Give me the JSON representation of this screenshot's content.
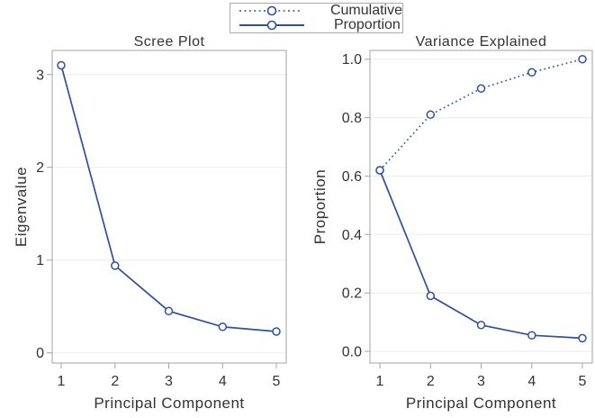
{
  "colors": {
    "accent": "#2d50a0",
    "frame": "#a3a3a3",
    "grid": "#ebebeb",
    "text": "#333333",
    "legend_border": "#ababab",
    "marker_fill": "#ffffff"
  },
  "legend": {
    "items": [
      {
        "label": "Cumulative",
        "line_style": "dotted"
      },
      {
        "label": "Proportion",
        "line_style": "solid"
      }
    ]
  },
  "chart_data": [
    {
      "type": "line",
      "slug": "scree-plot",
      "title": "Scree Plot",
      "xlabel": "Principal Component",
      "ylabel": "Eigenvalue",
      "x": [
        1,
        2,
        3,
        4,
        5
      ],
      "xtick_labels": [
        "1",
        "2",
        "3",
        "4",
        "5"
      ],
      "series": [
        {
          "name": "Eigenvalue",
          "line_style": "solid",
          "values": [
            3.1,
            0.94,
            0.45,
            0.28,
            0.23
          ]
        }
      ],
      "yticks": [
        0,
        1,
        2,
        3
      ],
      "ytick_labels": [
        "0",
        "1",
        "2",
        "3"
      ],
      "ylim": [
        -0.11,
        3.26
      ],
      "grid": "horizontal",
      "legend_position": "top-center-shared"
    },
    {
      "type": "line",
      "slug": "variance-explained",
      "title": "Variance Explained",
      "xlabel": "Principal Component",
      "ylabel": "Proportion",
      "x": [
        1,
        2,
        3,
        4,
        5
      ],
      "xtick_labels": [
        "1",
        "2",
        "3",
        "4",
        "5"
      ],
      "series": [
        {
          "name": "Cumulative",
          "line_style": "dotted",
          "values": [
            0.62,
            0.81,
            0.9,
            0.955,
            1.0
          ]
        },
        {
          "name": "Proportion",
          "line_style": "solid",
          "values": [
            0.62,
            0.19,
            0.09,
            0.055,
            0.045
          ]
        }
      ],
      "yticks": [
        0,
        0.2,
        0.4,
        0.6,
        0.8,
        1.0
      ],
      "ytick_labels": [
        "0.0",
        "0.2",
        "0.4",
        "0.6",
        "0.8",
        "1.0"
      ],
      "ylim": [
        -0.04,
        1.03
      ],
      "grid": "horizontal",
      "legend_position": "top-center-shared"
    }
  ]
}
